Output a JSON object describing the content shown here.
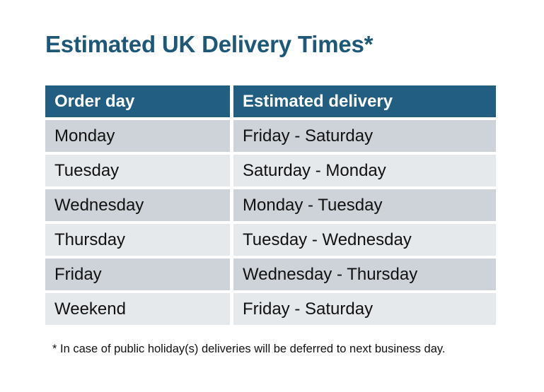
{
  "title": "Estimated UK Delivery Times*",
  "table": {
    "columns": [
      "Order day",
      "Estimated delivery"
    ],
    "rows": [
      {
        "order_day": "Monday",
        "estimated_delivery": "Friday - Saturday"
      },
      {
        "order_day": "Tuesday",
        "estimated_delivery": "Saturday - Monday"
      },
      {
        "order_day": "Wednesday",
        "estimated_delivery": "Monday - Tuesday"
      },
      {
        "order_day": "Thursday",
        "estimated_delivery": "Tuesday - Wednesday"
      },
      {
        "order_day": "Friday",
        "estimated_delivery": "Wednesday - Thursday"
      },
      {
        "order_day": "Weekend",
        "estimated_delivery": "Friday - Saturday"
      }
    ]
  },
  "footnote": "* In case of public holiday(s) deliveries will be deferred to next business day.",
  "colors": {
    "title_text": "#1d5878",
    "header_bg": "#215e81",
    "header_text": "#ffffff",
    "row_odd_bg": "#ced3d9",
    "row_even_bg": "#e6e9ec",
    "body_text": "#111111",
    "background": "#ffffff"
  }
}
